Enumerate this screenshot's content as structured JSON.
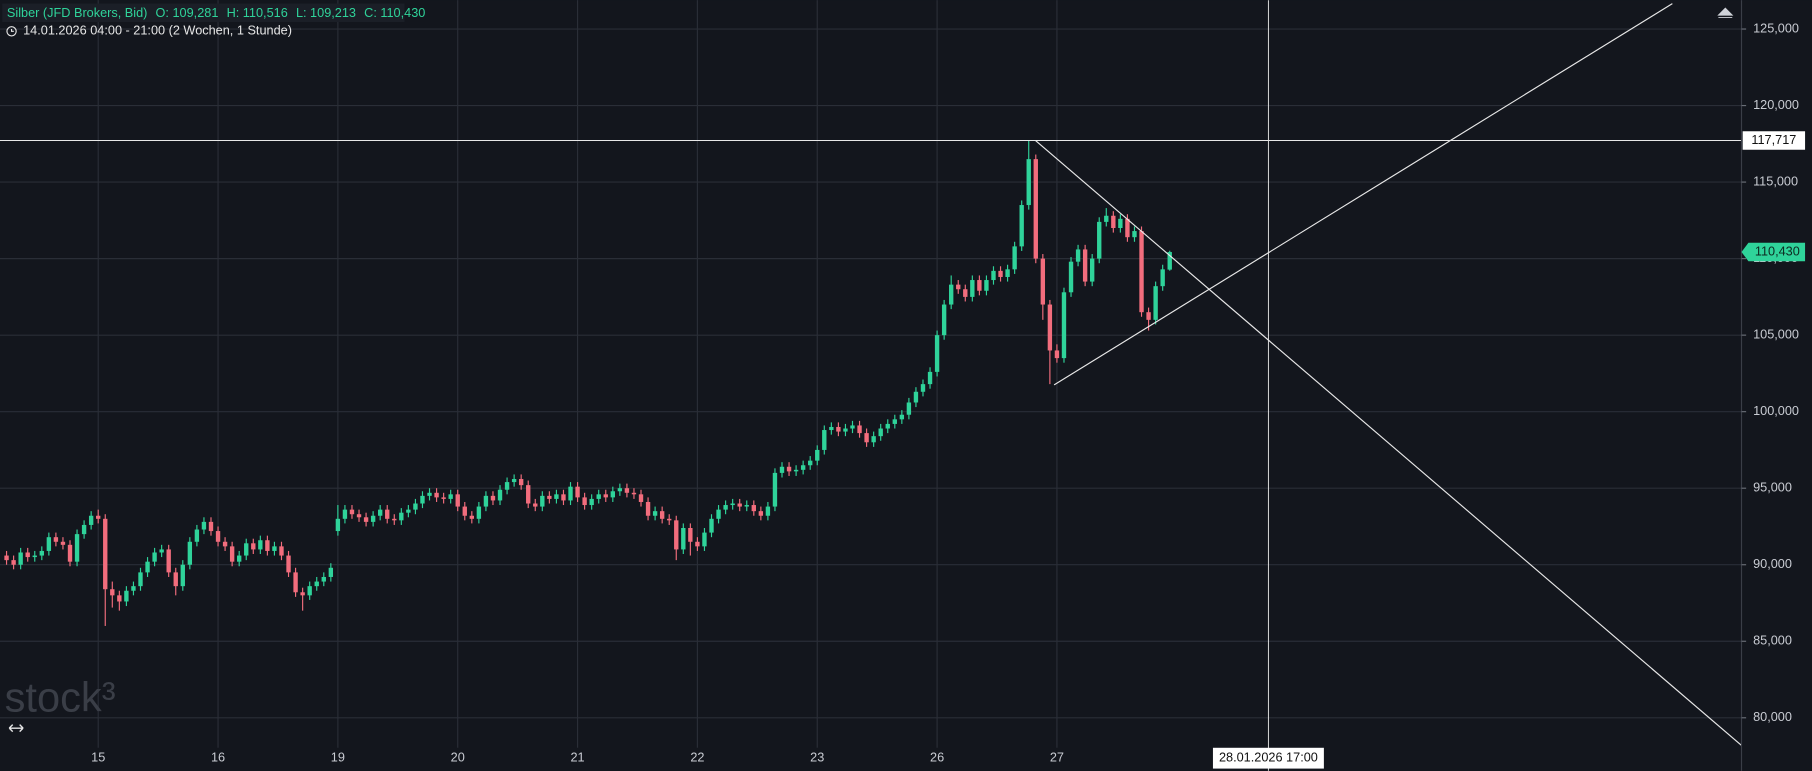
{
  "chart_data": {
    "type": "candlestick",
    "title": "Silber (JFD Brokers, Bid)",
    "ohlc_labels": [
      "O: 109,281",
      "H: 110,516",
      "L: 109,213",
      "C: 110,430"
    ],
    "subtitle": "14.01.2026 04:00 - 21:00  (2 Wochen, 1 Stunde)",
    "logo": "stock³",
    "xlim": [
      -0.93,
      246.11
    ],
    "ylim": [
      76.53,
      126.89
    ],
    "grid": true,
    "xticks": [
      {
        "value": 13,
        "label": "15"
      },
      {
        "value": 30,
        "label": "16"
      },
      {
        "value": 47,
        "label": "19"
      },
      {
        "value": 64,
        "label": "20"
      },
      {
        "value": 81,
        "label": "21"
      },
      {
        "value": 98,
        "label": "22"
      },
      {
        "value": 115,
        "label": "23"
      },
      {
        "value": 132,
        "label": "26"
      },
      {
        "value": 149,
        "label": "27"
      }
    ],
    "yticks": [
      {
        "value": 80,
        "label": "80,000"
      },
      {
        "value": 85,
        "label": "85,000"
      },
      {
        "value": 90,
        "label": "90,000"
      },
      {
        "value": 95,
        "label": "95,000"
      },
      {
        "value": 100,
        "label": "100,000"
      },
      {
        "value": 105,
        "label": "105,000"
      },
      {
        "value": 110,
        "label": "110,000"
      },
      {
        "value": 115,
        "label": "115,000"
      },
      {
        "value": 120,
        "label": "120,000"
      },
      {
        "value": 125,
        "label": "125,000"
      }
    ],
    "up_color": "#2fd39a",
    "down_color": "#f26d7d",
    "series": [
      {
        "ohlc": [
          [
            90.6,
            90.9,
            90.0,
            90.3
          ],
          [
            90.3,
            90.6,
            89.7,
            90.0
          ],
          [
            90.0,
            91.1,
            89.7,
            90.8
          ],
          [
            90.8,
            91.1,
            90.2,
            90.5
          ],
          [
            90.5,
            90.9,
            90.2,
            90.6
          ],
          [
            90.6,
            91.2,
            90.3,
            90.9
          ],
          [
            90.9,
            92.1,
            90.6,
            91.8
          ],
          [
            91.8,
            92.1,
            91.2,
            91.5
          ],
          [
            91.5,
            91.8,
            91.0,
            91.3
          ],
          [
            91.3,
            91.6,
            89.9,
            90.2
          ],
          [
            90.2,
            92.3,
            89.9,
            92.0
          ],
          [
            92.0,
            92.9,
            91.7,
            92.6
          ],
          [
            92.6,
            93.5,
            92.3,
            93.2
          ],
          [
            93.2,
            93.6,
            92.7,
            93.0
          ],
          [
            93.0,
            93.3,
            86.0,
            88.4
          ],
          [
            88.4,
            88.9,
            87.2,
            88.0
          ],
          [
            88.0,
            88.3,
            87.0,
            87.6
          ],
          [
            87.6,
            88.6,
            87.3,
            88.3
          ],
          [
            88.3,
            88.9,
            88.0,
            88.6
          ],
          [
            88.6,
            89.8,
            88.3,
            89.5
          ],
          [
            89.5,
            90.5,
            89.2,
            90.2
          ],
          [
            90.2,
            91.1,
            89.9,
            90.8
          ],
          [
            90.8,
            91.3,
            90.5,
            91.0
          ],
          [
            91.0,
            91.3,
            89.2,
            89.5
          ],
          [
            89.5,
            89.8,
            88.0,
            88.6
          ],
          [
            88.6,
            90.3,
            88.3,
            90.0
          ],
          [
            90.0,
            91.8,
            89.7,
            91.5
          ],
          [
            91.5,
            92.6,
            91.2,
            92.3
          ],
          [
            92.3,
            93.1,
            92.0,
            92.8
          ],
          [
            92.8,
            93.1,
            91.9,
            92.2
          ],
          [
            92.2,
            92.5,
            91.2,
            91.5
          ],
          [
            91.5,
            91.8,
            90.9,
            91.2
          ],
          [
            91.2,
            91.5,
            89.9,
            90.2
          ],
          [
            90.2,
            90.9,
            89.9,
            90.6
          ],
          [
            90.6,
            91.7,
            90.3,
            91.4
          ],
          [
            91.4,
            91.7,
            90.7,
            91.0
          ],
          [
            91.0,
            91.9,
            90.7,
            91.6
          ],
          [
            91.6,
            91.9,
            90.6,
            90.9
          ],
          [
            90.9,
            91.5,
            90.6,
            91.2
          ],
          [
            91.2,
            91.5,
            90.3,
            90.6
          ],
          [
            90.6,
            90.9,
            89.2,
            89.5
          ],
          [
            89.5,
            89.8,
            87.9,
            88.2
          ],
          [
            88.2,
            88.5,
            87.0,
            88.0
          ],
          [
            88.0,
            88.9,
            87.7,
            88.6
          ],
          [
            88.6,
            89.2,
            88.3,
            88.9
          ],
          [
            88.9,
            89.5,
            88.6,
            89.2
          ],
          [
            89.2,
            90.1,
            88.9,
            89.8
          ],
          [
            92.2,
            93.9,
            91.9,
            93.0
          ],
          [
            93.0,
            93.9,
            92.7,
            93.6
          ],
          [
            93.6,
            93.9,
            93.0,
            93.3
          ],
          [
            93.3,
            93.6,
            92.8,
            93.1
          ],
          [
            93.1,
            93.4,
            92.5,
            92.8
          ],
          [
            92.8,
            93.5,
            92.5,
            93.2
          ],
          [
            93.2,
            93.9,
            92.9,
            93.6
          ],
          [
            93.6,
            93.9,
            92.7,
            93.0
          ],
          [
            93.0,
            93.3,
            92.6,
            92.9
          ],
          [
            92.9,
            93.7,
            92.6,
            93.4
          ],
          [
            93.4,
            93.9,
            93.1,
            93.6
          ],
          [
            93.6,
            94.3,
            93.3,
            94.0
          ],
          [
            94.0,
            94.8,
            93.7,
            94.5
          ],
          [
            94.5,
            95.0,
            94.2,
            94.7
          ],
          [
            94.7,
            95.0,
            94.1,
            94.4
          ],
          [
            94.4,
            94.7,
            94.0,
            94.3
          ],
          [
            94.3,
            94.9,
            94.0,
            94.6
          ],
          [
            94.6,
            94.9,
            93.5,
            93.8
          ],
          [
            93.8,
            94.1,
            92.9,
            93.2
          ],
          [
            93.2,
            93.5,
            92.7,
            93.0
          ],
          [
            93.0,
            94.1,
            92.7,
            93.8
          ],
          [
            93.8,
            94.8,
            93.5,
            94.5
          ],
          [
            94.5,
            94.8,
            93.9,
            94.2
          ],
          [
            94.2,
            95.2,
            93.9,
            94.9
          ],
          [
            94.9,
            95.7,
            94.6,
            95.4
          ],
          [
            95.4,
            95.9,
            95.1,
            95.6
          ],
          [
            95.6,
            95.9,
            94.9,
            95.2
          ],
          [
            95.2,
            95.5,
            93.7,
            94.0
          ],
          [
            94.0,
            94.3,
            93.5,
            93.8
          ],
          [
            93.8,
            94.8,
            93.5,
            94.5
          ],
          [
            94.5,
            94.8,
            94.0,
            94.3
          ],
          [
            94.3,
            94.9,
            94.0,
            94.6
          ],
          [
            94.6,
            94.9,
            93.9,
            94.2
          ],
          [
            94.2,
            95.4,
            93.9,
            95.1
          ],
          [
            95.1,
            95.4,
            94.1,
            94.4
          ],
          [
            94.4,
            94.7,
            93.6,
            93.9
          ],
          [
            93.9,
            94.6,
            93.6,
            94.3
          ],
          [
            94.3,
            94.9,
            94.0,
            94.6
          ],
          [
            94.6,
            94.9,
            94.1,
            94.4
          ],
          [
            94.4,
            95.1,
            94.1,
            94.8
          ],
          [
            94.8,
            95.3,
            94.5,
            95.0
          ],
          [
            95.0,
            95.3,
            94.4,
            94.7
          ],
          [
            94.7,
            95.0,
            94.3,
            94.6
          ],
          [
            94.6,
            94.9,
            93.8,
            94.1
          ],
          [
            94.1,
            94.4,
            92.9,
            93.2
          ],
          [
            93.2,
            93.8,
            92.9,
            93.5
          ],
          [
            93.5,
            93.8,
            92.7,
            93.0
          ],
          [
            93.0,
            93.3,
            92.6,
            92.9
          ],
          [
            92.9,
            93.2,
            90.3,
            91.0
          ],
          [
            91.0,
            92.7,
            90.7,
            92.4
          ],
          [
            92.4,
            92.7,
            90.6,
            91.5
          ],
          [
            91.5,
            91.8,
            90.9,
            91.2
          ],
          [
            91.2,
            92.4,
            90.9,
            92.1
          ],
          [
            92.1,
            93.3,
            91.8,
            93.0
          ],
          [
            93.0,
            93.9,
            92.7,
            93.6
          ],
          [
            93.6,
            94.2,
            93.3,
            93.9
          ],
          [
            93.9,
            94.3,
            93.6,
            94.0
          ],
          [
            94.0,
            94.3,
            93.5,
            93.8
          ],
          [
            93.8,
            94.2,
            93.5,
            93.9
          ],
          [
            93.9,
            94.2,
            93.2,
            93.5
          ],
          [
            93.5,
            93.8,
            92.9,
            93.2
          ],
          [
            93.2,
            94.1,
            92.9,
            93.8
          ],
          [
            93.8,
            96.3,
            93.5,
            96.0
          ],
          [
            96.0,
            96.7,
            95.7,
            96.4
          ],
          [
            96.4,
            96.7,
            95.8,
            96.1
          ],
          [
            96.1,
            96.5,
            95.8,
            96.2
          ],
          [
            96.2,
            96.8,
            95.9,
            96.5
          ],
          [
            96.5,
            97.1,
            96.2,
            96.8
          ],
          [
            96.8,
            97.8,
            96.5,
            97.5
          ],
          [
            97.5,
            99.1,
            97.2,
            98.8
          ],
          [
            98.8,
            99.3,
            98.5,
            99.0
          ],
          [
            99.0,
            99.3,
            98.4,
            98.7
          ],
          [
            98.7,
            99.2,
            98.4,
            98.9
          ],
          [
            98.9,
            99.4,
            98.6,
            99.1
          ],
          [
            99.1,
            99.4,
            98.3,
            98.6
          ],
          [
            98.6,
            98.9,
            97.7,
            98.0
          ],
          [
            98.0,
            98.7,
            97.7,
            98.4
          ],
          [
            98.4,
            99.2,
            98.1,
            98.9
          ],
          [
            98.9,
            99.5,
            98.6,
            99.2
          ],
          [
            99.2,
            99.8,
            98.9,
            99.5
          ],
          [
            99.5,
            100.1,
            99.2,
            99.8
          ],
          [
            99.8,
            100.9,
            99.5,
            100.6
          ],
          [
            100.6,
            101.6,
            100.3,
            101.3
          ],
          [
            101.3,
            102.1,
            101.0,
            101.8
          ],
          [
            101.8,
            102.9,
            101.5,
            102.6
          ],
          [
            102.6,
            105.3,
            102.3,
            105.0
          ],
          [
            105.0,
            107.3,
            104.7,
            107.0
          ],
          [
            107.0,
            108.9,
            106.7,
            108.3
          ],
          [
            108.3,
            108.6,
            107.7,
            108.0
          ],
          [
            108.0,
            108.3,
            107.2,
            107.5
          ],
          [
            107.5,
            108.9,
            107.2,
            108.6
          ],
          [
            108.6,
            108.9,
            107.6,
            107.9
          ],
          [
            107.9,
            108.9,
            107.6,
            108.6
          ],
          [
            108.6,
            109.5,
            108.3,
            109.2
          ],
          [
            109.2,
            109.5,
            108.5,
            108.8
          ],
          [
            108.8,
            109.6,
            108.5,
            109.3
          ],
          [
            109.3,
            111.1,
            109.0,
            110.8
          ],
          [
            110.8,
            113.8,
            110.5,
            113.5
          ],
          [
            113.5,
            117.7,
            113.2,
            116.5
          ],
          [
            116.5,
            116.8,
            109.7,
            110.0
          ],
          [
            110.0,
            110.3,
            106.0,
            107.0
          ],
          [
            107.0,
            107.3,
            101.8,
            104.0
          ],
          [
            104.0,
            104.4,
            103.2,
            103.5
          ],
          [
            103.5,
            108.1,
            103.2,
            107.8
          ],
          [
            107.8,
            110.1,
            107.5,
            109.8
          ],
          [
            109.8,
            110.9,
            109.5,
            110.6
          ],
          [
            110.6,
            110.9,
            108.2,
            108.5
          ],
          [
            108.5,
            110.3,
            108.2,
            110.0
          ],
          [
            110.0,
            112.7,
            109.7,
            112.4
          ],
          [
            112.4,
            113.3,
            112.1,
            112.8
          ],
          [
            112.8,
            113.1,
            111.7,
            112.0
          ],
          [
            112.0,
            112.9,
            111.7,
            112.6
          ],
          [
            112.6,
            112.9,
            111.1,
            111.4
          ],
          [
            111.4,
            112.1,
            111.1,
            111.8
          ],
          [
            111.8,
            112.1,
            106.2,
            106.5
          ],
          [
            106.5,
            106.8,
            105.3,
            106.0
          ],
          [
            106.0,
            108.5,
            105.7,
            108.2
          ],
          [
            108.2,
            109.6,
            107.9,
            109.3
          ],
          [
            109.281,
            110.516,
            109.213,
            110.43
          ]
        ]
      }
    ],
    "hline": {
      "value": 117.717,
      "label": "117,717"
    },
    "last_price": {
      "value": 110.43,
      "label": "110,430"
    },
    "crosshair": {
      "x": 179,
      "label": "28.01.2026 17:00"
    },
    "trendlines": [
      {
        "x": [
          145.95,
          246.11
        ],
        "y": [
          117.72,
          78.19
        ]
      },
      {
        "x": [
          148.6,
          236.3
        ],
        "y": [
          101.75,
          126.66
        ]
      }
    ]
  }
}
